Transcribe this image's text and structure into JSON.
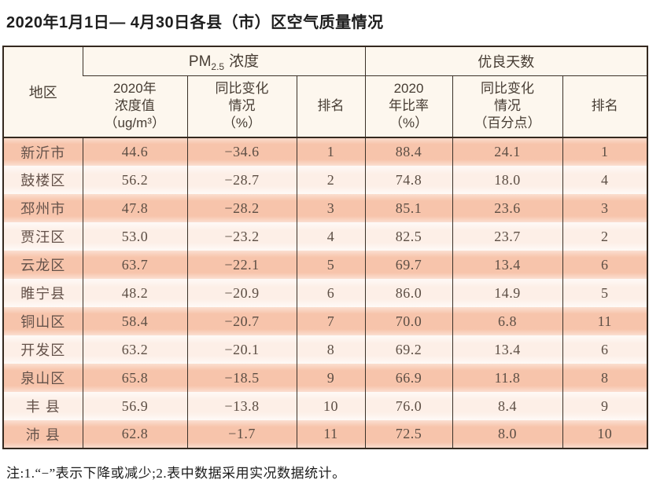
{
  "title": "2020年1月1日— 4月30日各县（市）区空气质量情况",
  "colors": {
    "row_odd": "#f7c4ab",
    "row_even": "#fdefe7",
    "header_bg": "#fdf7ee",
    "border": "#35291f",
    "body_text": "#5c4e44",
    "header_text": "#463c33",
    "title_text": "#1d1d1d"
  },
  "table": {
    "region_header": "地区",
    "pm_group": {
      "prefix": "PM",
      "sub": "2.5",
      "suffix": "浓度"
    },
    "good_group": "优良天数",
    "subheaders": {
      "pm_value": [
        "2020年",
        "浓度值",
        "（ug/m³）"
      ],
      "pm_change": [
        "同比变化",
        "情况",
        "（%）"
      ],
      "pm_rank": "排名",
      "good_ratio": [
        "2020",
        "年比率",
        "（%）"
      ],
      "good_change": [
        "同比变化",
        "情况",
        "（百分点）"
      ],
      "good_rank": "排名"
    },
    "rows": [
      [
        "新沂市",
        "44.6",
        "−34.6",
        "1",
        "88.4",
        "24.1",
        "1"
      ],
      [
        "鼓楼区",
        "56.2",
        "−28.7",
        "2",
        "74.8",
        "18.0",
        "4"
      ],
      [
        "邳州市",
        "47.8",
        "−28.2",
        "3",
        "85.1",
        "23.6",
        "3"
      ],
      [
        "贾汪区",
        "53.0",
        "−23.2",
        "4",
        "82.5",
        "23.7",
        "2"
      ],
      [
        "云龙区",
        "63.7",
        "−22.1",
        "5",
        "69.7",
        "13.4",
        "6"
      ],
      [
        "睢宁县",
        "48.2",
        "−20.9",
        "6",
        "86.0",
        "14.9",
        "5"
      ],
      [
        "铜山区",
        "58.4",
        "−20.7",
        "7",
        "70.0",
        "6.8",
        "11"
      ],
      [
        "开发区",
        "63.2",
        "−20.1",
        "8",
        "69.2",
        "13.4",
        "6"
      ],
      [
        "泉山区",
        "65.8",
        "−18.5",
        "9",
        "66.9",
        "11.8",
        "8"
      ],
      [
        "丰 县",
        "56.9",
        "−13.8",
        "10",
        "76.0",
        "8.4",
        "9"
      ],
      [
        "沛 县",
        "62.8",
        "−1.7",
        "11",
        "72.5",
        "8.0",
        "10"
      ]
    ]
  },
  "footnote": "注:1.“−”表示下降或减少;2.表中数据采用实况数据统计。"
}
